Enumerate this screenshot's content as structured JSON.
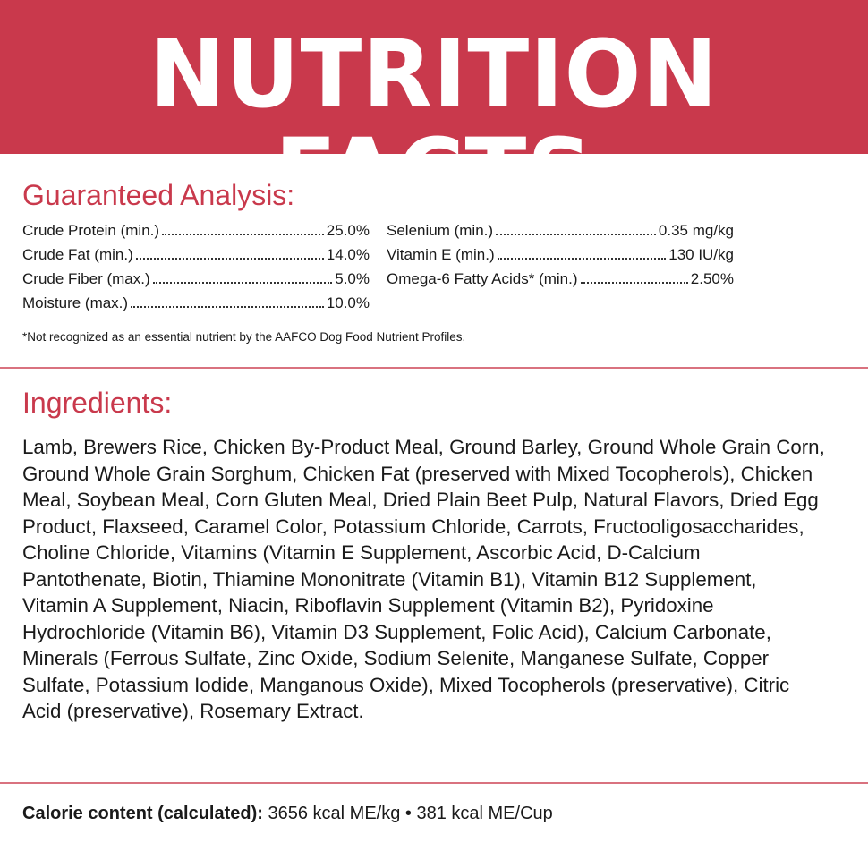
{
  "header": {
    "title": "NUTRITION FACTS"
  },
  "guaranteed_analysis": {
    "heading": "Guaranteed Analysis:",
    "left": [
      {
        "label": "Crude Protein (min.)",
        "value": "25.0%"
      },
      {
        "label": "Crude Fat (min.)",
        "value": "14.0%"
      },
      {
        "label": "Crude Fiber (max.)",
        "value": "5.0%"
      },
      {
        "label": "Moisture (max.)",
        "value": "10.0%"
      }
    ],
    "right": [
      {
        "label": "Selenium (min.)",
        "value": "0.35 mg/kg"
      },
      {
        "label": "Vitamin E (min.)",
        "value": "130 IU/kg"
      },
      {
        "label": "Omega-6 Fatty Acids* (min.)",
        "value": "2.50%"
      }
    ],
    "footnote": "*Not recognized as an essential nutrient by the AAFCO Dog Food Nutrient Profiles."
  },
  "ingredients": {
    "heading": "Ingredients:",
    "text": "Lamb, Brewers Rice, Chicken By-Product Meal, Ground Barley, Ground Whole Grain Corn, Ground Whole Grain Sorghum, Chicken Fat (preserved with Mixed Tocopherols), Chicken Meal, Soybean Meal, Corn Gluten Meal, Dried Plain Beet Pulp, Natural Flavors, Dried Egg Product, Flaxseed, Caramel Color, Potassium Chloride, Carrots, Fructooligosaccharides, Choline Chloride, Vitamins (Vitamin E Supplement, Ascorbic Acid, D-Calcium Pantothenate, Biotin, Thiamine Mononitrate (Vitamin B1), Vitamin B12 Supplement, Vitamin A Supplement, Niacin, Riboflavin Supplement (Vitamin B2), Pyridoxine Hydrochloride (Vitamin B6), Vitamin D3 Supplement, Folic Acid), Calcium Carbonate, Minerals (Ferrous Sulfate, Zinc Oxide, Sodium Selenite, Manganese Sulfate, Copper Sulfate, Potassium Iodide, Manganous Oxide), Mixed Tocopherols (preservative), Citric Acid (preservative), Rosemary Extract."
  },
  "calorie": {
    "label": "Calorie content (calculated):",
    "value": "3656 kcal ME/kg • 381 kcal ME/Cup"
  }
}
